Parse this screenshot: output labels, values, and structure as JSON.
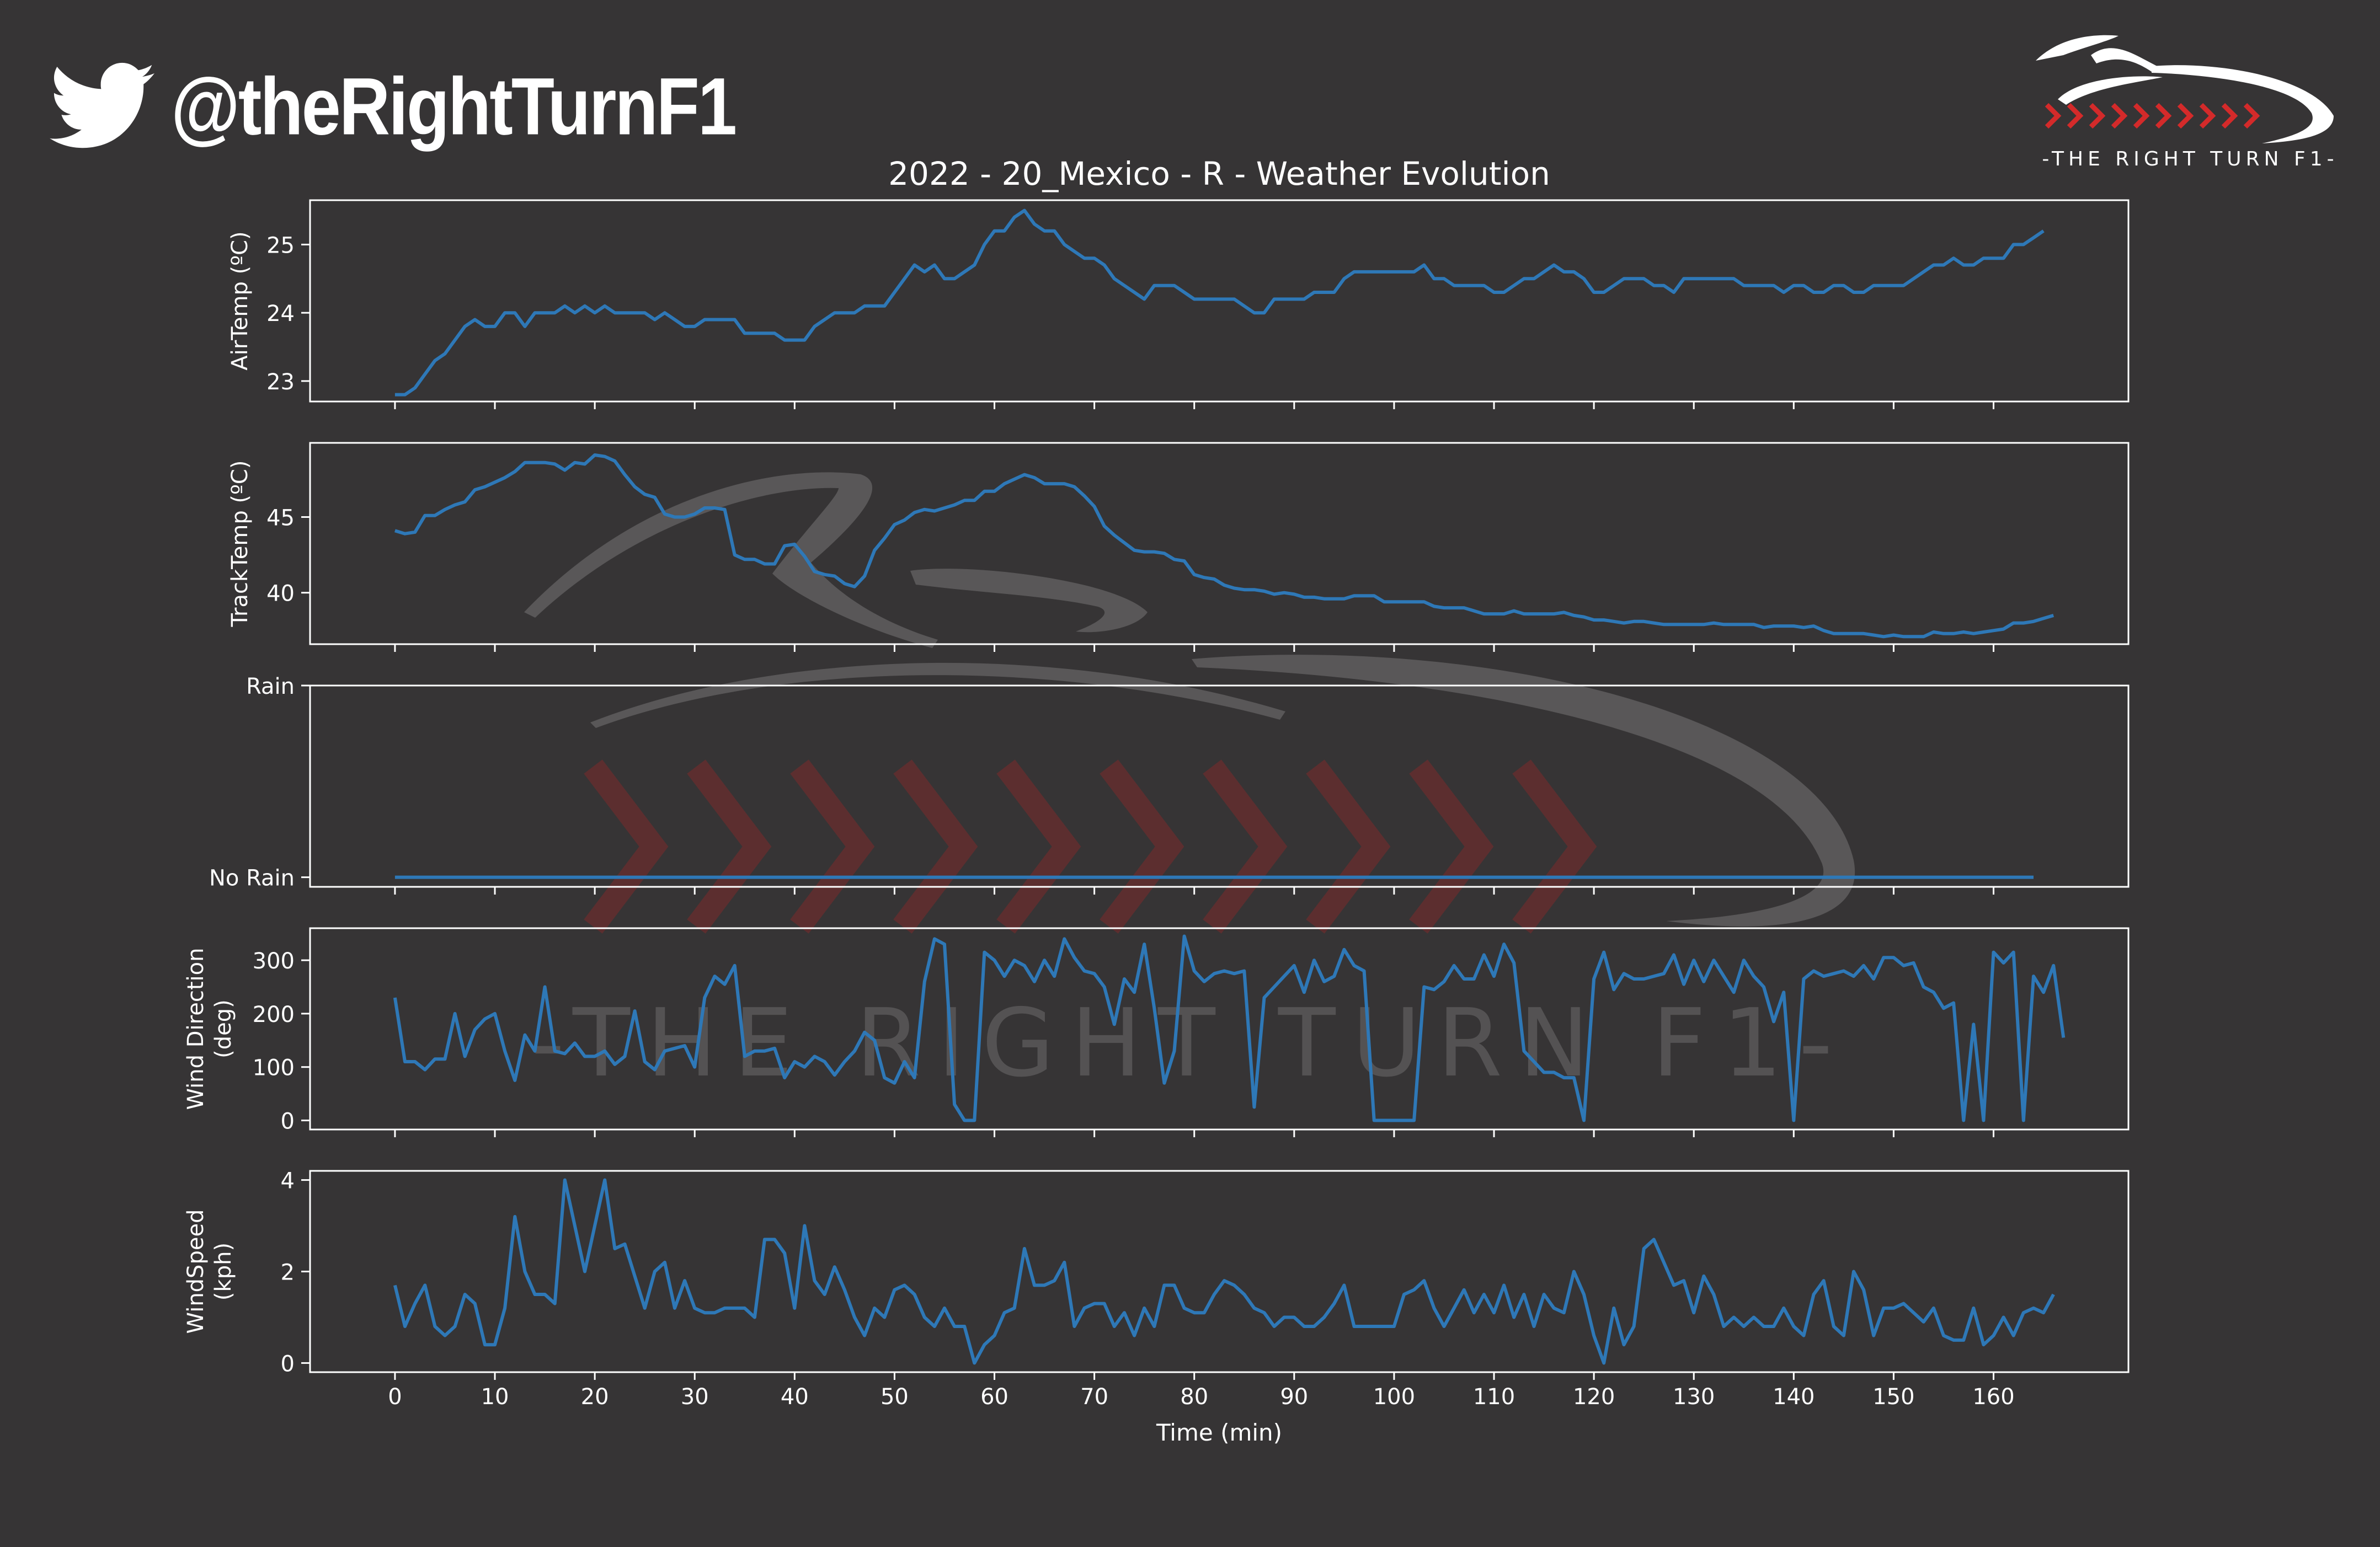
{
  "brand": {
    "handle": "@theRightTurnF1",
    "logo_text": "-THE RIGHT TURN F1-",
    "watermark_text": "-THE RIGHT TURN F1-",
    "twitter_icon": "twitter-bird-icon",
    "logo_icon": "race-car-logo-icon"
  },
  "colors": {
    "background": "#363435",
    "line": "#2e78b7",
    "axis": "#ffffff",
    "chevron_red": "#d42a2a"
  },
  "chart_data": {
    "type": "line",
    "title": "2022 - 20_Mexico - R - Weather Evolution",
    "xlabel": "Time (min)",
    "xlim": [
      -8.5,
      173.5
    ],
    "xticks": [
      0,
      10,
      20,
      30,
      40,
      50,
      60,
      70,
      80,
      90,
      100,
      110,
      120,
      130,
      140,
      150,
      160
    ],
    "x_start": 0,
    "x_step": 1,
    "panels": [
      {
        "name": "air-temp",
        "ylabel": [
          "AirTemp (ºC)"
        ],
        "ylim": [
          22.7,
          25.65
        ],
        "yticks": [
          23,
          24,
          25
        ],
        "ytick_labels": [
          "23",
          "24",
          "25"
        ],
        "values": [
          22.8,
          22.8,
          22.9,
          23.1,
          23.3,
          23.4,
          23.6,
          23.8,
          23.9,
          23.8,
          23.8,
          24,
          24,
          23.8,
          24,
          24,
          24,
          24.1,
          24,
          24.1,
          24,
          24.1,
          24,
          24,
          24,
          24,
          23.9,
          24,
          23.9,
          23.8,
          23.8,
          23.9,
          23.9,
          23.9,
          23.9,
          23.7,
          23.7,
          23.7,
          23.7,
          23.6,
          23.6,
          23.6,
          23.8,
          23.9,
          24,
          24,
          24,
          24.1,
          24.1,
          24.1,
          24.3,
          24.5,
          24.7,
          24.6,
          24.7,
          24.5,
          24.5,
          24.6,
          24.7,
          25,
          25.2,
          25.2,
          25.4,
          25.5,
          25.3,
          25.2,
          25.2,
          25,
          24.9,
          24.8,
          24.8,
          24.7,
          24.5,
          24.4,
          24.3,
          24.2,
          24.4,
          24.4,
          24.4,
          24.3,
          24.2,
          24.2,
          24.2,
          24.2,
          24.2,
          24.1,
          24,
          24,
          24.2,
          24.2,
          24.2,
          24.2,
          24.3,
          24.3,
          24.3,
          24.5,
          24.6,
          24.6,
          24.6,
          24.6,
          24.6,
          24.6,
          24.6,
          24.7,
          24.5,
          24.5,
          24.4,
          24.4,
          24.4,
          24.4,
          24.3,
          24.3,
          24.4,
          24.5,
          24.5,
          24.6,
          24.7,
          24.6,
          24.6,
          24.5,
          24.3,
          24.3,
          24.4,
          24.5,
          24.5,
          24.5,
          24.4,
          24.4,
          24.3,
          24.5,
          24.5,
          24.5,
          24.5,
          24.5,
          24.5,
          24.4,
          24.4,
          24.4,
          24.4,
          24.3,
          24.4,
          24.4,
          24.3,
          24.3,
          24.4,
          24.4,
          24.3,
          24.3,
          24.4,
          24.4,
          24.4,
          24.4,
          24.5,
          24.6,
          24.7,
          24.7,
          24.8,
          24.7,
          24.7,
          24.8,
          24.8,
          24.8,
          25,
          25,
          25.1,
          25.2
        ]
      },
      {
        "name": "track-temp",
        "ylabel": [
          "TrackTemp (ºC)"
        ],
        "ylim": [
          36.6,
          49.9
        ],
        "yticks": [
          40,
          45
        ],
        "ytick_labels": [
          "40",
          "45"
        ],
        "values": [
          44.1,
          43.9,
          44,
          45.1,
          45.1,
          45.5,
          45.8,
          46,
          46.8,
          47,
          47.3,
          47.6,
          48,
          48.6,
          48.6,
          48.6,
          48.5,
          48.1,
          48.6,
          48.5,
          49.1,
          49,
          48.7,
          47.8,
          47,
          46.5,
          46.3,
          45.2,
          45,
          45,
          45.2,
          45.6,
          45.6,
          45.5,
          42.5,
          42.2,
          42.2,
          41.9,
          41.9,
          43.1,
          43.2,
          42.4,
          41.4,
          41.2,
          41.1,
          40.6,
          40.4,
          41.1,
          42.8,
          43.6,
          44.5,
          44.8,
          45.3,
          45.5,
          45.4,
          45.6,
          45.8,
          46.1,
          46.1,
          46.7,
          46.7,
          47.2,
          47.5,
          47.8,
          47.6,
          47.2,
          47.2,
          47.2,
          47,
          46.4,
          45.7,
          44.4,
          43.8,
          43.3,
          42.8,
          42.7,
          42.7,
          42.6,
          42.2,
          42.1,
          41.2,
          41,
          40.9,
          40.5,
          40.3,
          40.2,
          40.2,
          40.1,
          39.9,
          40,
          39.9,
          39.7,
          39.7,
          39.6,
          39.6,
          39.6,
          39.8,
          39.8,
          39.8,
          39.4,
          39.4,
          39.4,
          39.4,
          39.4,
          39.1,
          39,
          39,
          39,
          38.8,
          38.6,
          38.6,
          38.6,
          38.8,
          38.6,
          38.6,
          38.6,
          38.6,
          38.7,
          38.5,
          38.4,
          38.2,
          38.2,
          38.1,
          38,
          38.1,
          38.1,
          38,
          37.9,
          37.9,
          37.9,
          37.9,
          37.9,
          38,
          37.9,
          37.9,
          37.9,
          37.9,
          37.7,
          37.8,
          37.8,
          37.8,
          37.7,
          37.8,
          37.5,
          37.3,
          37.3,
          37.3,
          37.3,
          37.2,
          37.1,
          37.2,
          37.1,
          37.1,
          37.1,
          37.4,
          37.3,
          37.3,
          37.4,
          37.3,
          37.4,
          37.5,
          37.6,
          38,
          38,
          38.1,
          38.3,
          38.5
        ]
      },
      {
        "name": "rainfall",
        "ylabel": [],
        "ylim": [
          -0.05,
          1.0
        ],
        "yticks": [
          0,
          1
        ],
        "ytick_labels": [
          "No Rain",
          "Rain"
        ],
        "values": [
          0,
          0,
          0,
          0,
          0,
          0,
          0,
          0,
          0,
          0,
          0,
          0,
          0,
          0,
          0,
          0,
          0,
          0,
          0,
          0,
          0,
          0,
          0,
          0,
          0,
          0,
          0,
          0,
          0,
          0,
          0,
          0,
          0,
          0,
          0,
          0,
          0,
          0,
          0,
          0,
          0,
          0,
          0,
          0,
          0,
          0,
          0,
          0,
          0,
          0,
          0,
          0,
          0,
          0,
          0,
          0,
          0,
          0,
          0,
          0,
          0,
          0,
          0,
          0,
          0,
          0,
          0,
          0,
          0,
          0,
          0,
          0,
          0,
          0,
          0,
          0,
          0,
          0,
          0,
          0,
          0,
          0,
          0,
          0,
          0,
          0,
          0,
          0,
          0,
          0,
          0,
          0,
          0,
          0,
          0,
          0,
          0,
          0,
          0,
          0,
          0,
          0,
          0,
          0,
          0,
          0,
          0,
          0,
          0,
          0,
          0,
          0,
          0,
          0,
          0,
          0,
          0,
          0,
          0,
          0,
          0,
          0,
          0,
          0,
          0,
          0,
          0,
          0,
          0,
          0,
          0,
          0,
          0,
          0,
          0,
          0,
          0,
          0,
          0,
          0,
          0,
          0,
          0,
          0,
          0,
          0,
          0,
          0,
          0,
          0,
          0,
          0,
          0,
          0,
          0,
          0,
          0,
          0,
          0,
          0,
          0,
          0,
          0,
          0,
          0
        ]
      },
      {
        "name": "wind-direction",
        "ylabel": [
          "Wind Direction",
          "(deg)"
        ],
        "ylim": [
          -17,
          360
        ],
        "yticks": [
          0,
          100,
          200,
          300
        ],
        "ytick_labels": [
          "0",
          "100",
          "200",
          "300"
        ],
        "values": [
          230,
          110,
          110,
          95,
          115,
          115,
          200,
          120,
          170,
          190,
          200,
          130,
          75,
          160,
          130,
          250,
          130,
          125,
          145,
          120,
          120,
          130,
          105,
          120,
          205,
          110,
          95,
          130,
          135,
          140,
          100,
          230,
          270,
          255,
          290,
          120,
          130,
          130,
          135,
          80,
          110,
          100,
          120,
          110,
          85,
          110,
          130,
          165,
          150,
          80,
          70,
          110,
          80,
          260,
          340,
          330,
          30,
          0,
          0,
          315,
          300,
          270,
          300,
          290,
          260,
          300,
          270,
          340,
          305,
          280,
          275,
          250,
          180,
          265,
          240,
          330,
          210,
          70,
          130,
          345,
          280,
          260,
          275,
          280,
          275,
          280,
          25,
          230,
          250,
          270,
          290,
          240,
          300,
          260,
          270,
          320,
          290,
          280,
          0,
          0,
          0,
          0,
          0,
          250,
          245,
          260,
          290,
          265,
          265,
          310,
          270,
          330,
          295,
          130,
          110,
          90,
          90,
          80,
          80,
          0,
          265,
          315,
          245,
          275,
          265,
          265,
          270,
          275,
          310,
          255,
          300,
          260,
          300,
          270,
          240,
          300,
          270,
          250,
          185,
          240,
          0,
          265,
          280,
          270,
          275,
          280,
          270,
          290,
          265,
          305,
          305,
          290,
          295,
          250,
          240,
          210,
          220,
          0,
          180,
          0,
          315,
          295,
          315,
          0,
          270,
          240,
          290,
          155
        ]
      },
      {
        "name": "wind-speed",
        "ylabel": [
          "WindSpeed",
          "(kph)"
        ],
        "ylim": [
          -0.2,
          4.2
        ],
        "yticks": [
          0,
          2,
          4
        ],
        "ytick_labels": [
          "0",
          "2",
          "4"
        ],
        "values": [
          1.7,
          0.8,
          1.3,
          1.7,
          0.8,
          0.6,
          0.8,
          1.5,
          1.3,
          0.4,
          0.4,
          1.2,
          3.2,
          2,
          1.5,
          1.5,
          1.3,
          4,
          3,
          2,
          3,
          4,
          2.5,
          2.6,
          1.9,
          1.2,
          2,
          2.2,
          1.2,
          1.8,
          1.2,
          1.1,
          1.1,
          1.2,
          1.2,
          1.2,
          1,
          2.7,
          2.7,
          2.4,
          1.2,
          3,
          1.8,
          1.5,
          2.1,
          1.6,
          1,
          0.6,
          1.2,
          1,
          1.6,
          1.7,
          1.5,
          1,
          0.8,
          1.2,
          0.8,
          0.8,
          0,
          0.4,
          0.6,
          1.1,
          1.2,
          2.5,
          1.7,
          1.7,
          1.8,
          2.2,
          0.8,
          1.2,
          1.3,
          1.3,
          0.8,
          1.1,
          0.6,
          1.2,
          0.8,
          1.7,
          1.7,
          1.2,
          1.1,
          1.1,
          1.5,
          1.8,
          1.7,
          1.5,
          1.2,
          1.1,
          0.8,
          1,
          1,
          0.8,
          0.8,
          1,
          1.3,
          1.7,
          0.8,
          0.8,
          0.8,
          0.8,
          0.8,
          1.5,
          1.6,
          1.8,
          1.2,
          0.8,
          1.2,
          1.6,
          1.1,
          1.5,
          1.1,
          1.7,
          1,
          1.5,
          0.8,
          1.5,
          1.2,
          1.1,
          2,
          1.5,
          0.6,
          0,
          1.2,
          0.4,
          0.8,
          2.5,
          2.7,
          2.2,
          1.7,
          1.8,
          1.1,
          1.9,
          1.5,
          0.8,
          1,
          0.8,
          1,
          0.8,
          0.8,
          1.2,
          0.8,
          0.6,
          1.5,
          1.8,
          0.8,
          0.6,
          2,
          1.6,
          0.6,
          1.2,
          1.2,
          1.3,
          1.1,
          0.9,
          1.2,
          0.6,
          0.5,
          0.5,
          1.2,
          0.4,
          0.6,
          1,
          0.6,
          1.1,
          1.2,
          1.1,
          1.5
        ]
      }
    ]
  }
}
